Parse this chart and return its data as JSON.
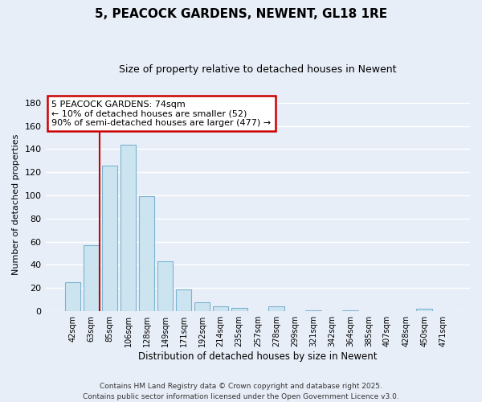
{
  "title": "5, PEACOCK GARDENS, NEWENT, GL18 1RE",
  "subtitle": "Size of property relative to detached houses in Newent",
  "xlabel": "Distribution of detached houses by size in Newent",
  "ylabel": "Number of detached properties",
  "bar_labels": [
    "42sqm",
    "63sqm",
    "85sqm",
    "106sqm",
    "128sqm",
    "149sqm",
    "171sqm",
    "192sqm",
    "214sqm",
    "235sqm",
    "257sqm",
    "278sqm",
    "299sqm",
    "321sqm",
    "342sqm",
    "364sqm",
    "385sqm",
    "407sqm",
    "428sqm",
    "450sqm",
    "471sqm"
  ],
  "bar_values": [
    25,
    57,
    126,
    144,
    99,
    43,
    19,
    8,
    4,
    3,
    0,
    4,
    0,
    1,
    0,
    1,
    0,
    0,
    0,
    2,
    0
  ],
  "bar_color": "#cce4f0",
  "bar_edge_color": "#7ab3d0",
  "annotation_box_text_line1": "5 PEACOCK GARDENS: 74sqm",
  "annotation_box_text_line2": "← 10% of detached houses are smaller (52)",
  "annotation_box_text_line3": "90% of semi-detached houses are larger (477) →",
  "vline_color": "#cc0000",
  "vline_x_index": 1.48,
  "ylim": [
    0,
    185
  ],
  "yticks": [
    0,
    20,
    40,
    60,
    80,
    100,
    120,
    140,
    160,
    180
  ],
  "background_color": "#e8eef8",
  "footer_line1": "Contains HM Land Registry data © Crown copyright and database right 2025.",
  "footer_line2": "Contains public sector information licensed under the Open Government Licence v3.0.",
  "grid_color": "#ffffff",
  "figsize": [
    6.0,
    5.0
  ],
  "dpi": 100
}
